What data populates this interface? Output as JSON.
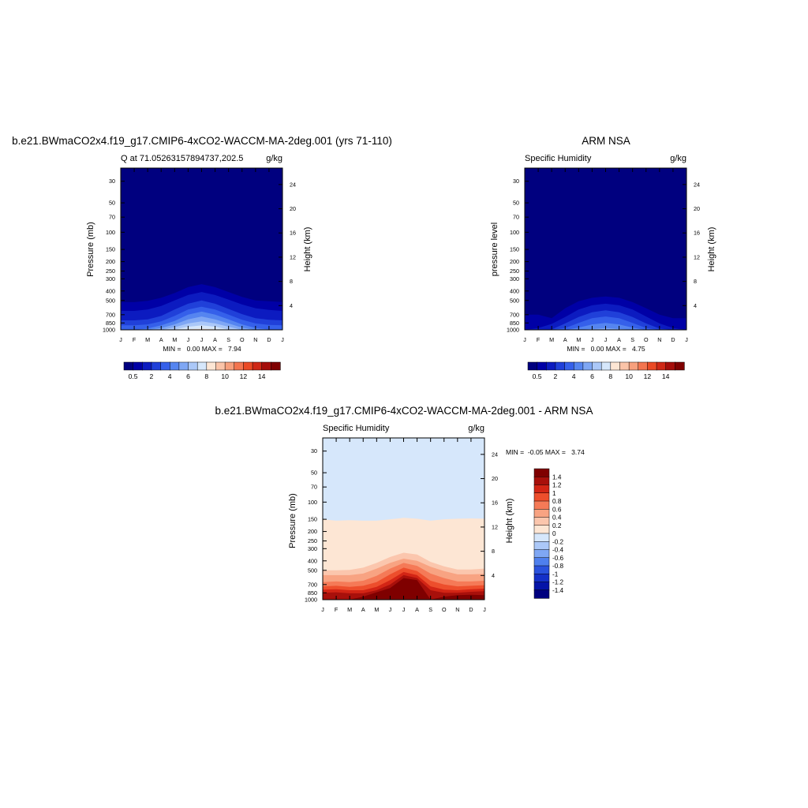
{
  "chart_data": [
    {
      "type": "heatmap",
      "title": "b.e21.BWmaCO2x4.f19_g17.CMIP6-4xCO2-WACCM-MA-2deg.001 (yrs 71-110)",
      "left_label": "Q at 71.05263157894737,202.5",
      "right_label": "g/kg",
      "ylabel": "Pressure (mb)",
      "ylabel_right": "Height (km)",
      "x_ticks": [
        "J",
        "F",
        "M",
        "A",
        "M",
        "J",
        "J",
        "A",
        "S",
        "O",
        "N",
        "D",
        "J"
      ],
      "y_ticks": [
        "30",
        "50",
        "70",
        "100",
        "150",
        "200",
        "250",
        "300",
        "400",
        "500",
        "700",
        "850",
        "1000"
      ],
      "y_ticks_right": [
        "24",
        "20",
        "16",
        "12",
        "8",
        "4"
      ],
      "yscale": "log",
      "ylim": [
        1000,
        22
      ],
      "stats": "MIN =   0.00 MAX =   7.94",
      "colorbar": {
        "orientation": "horizontal",
        "labels": [
          "0.5",
          "2",
          "4",
          "6",
          "8",
          "10",
          "12",
          "14"
        ]
      },
      "contour_tops_mb": {
        "x_months": [
          0,
          1,
          2,
          3,
          4,
          5,
          6,
          7,
          8,
          9,
          10,
          11,
          12
        ],
        "levels": [
          {
            "value": 0.5,
            "tops": [
              520,
              520,
              505,
              470,
              420,
              365,
              340,
              365,
              410,
              460,
              500,
              510,
              520
            ]
          },
          {
            "value": 1,
            "tops": [
              640,
              640,
              620,
              570,
              500,
              440,
              410,
              440,
              490,
              550,
              600,
              625,
              640
            ]
          },
          {
            "value": 2,
            "tops": [
              800,
              800,
              780,
              720,
              620,
              540,
              500,
              540,
              610,
              690,
              760,
              790,
              800
            ]
          },
          {
            "value": 3,
            "tops": [
              900,
              900,
              880,
              820,
              720,
              620,
              580,
              620,
              700,
              790,
              860,
              890,
              900
            ]
          },
          {
            "value": 4,
            "tops": [
              1000,
              1000,
              970,
              900,
              810,
              700,
              650,
              700,
              780,
              880,
              960,
              990,
              1000
            ]
          },
          {
            "value": 5,
            "tops": [
              1000,
              1000,
              1000,
              960,
              880,
              780,
              730,
              780,
              860,
              950,
              1000,
              1000,
              1000
            ]
          },
          {
            "value": 6,
            "tops": [
              1000,
              1000,
              1000,
              1000,
              940,
              860,
              820,
              860,
              930,
              1000,
              1000,
              1000,
              1000
            ]
          },
          {
            "value": 7,
            "tops": [
              1000,
              1000,
              1000,
              1000,
              990,
              930,
              900,
              930,
              990,
              1000,
              1000,
              1000,
              1000
            ]
          },
          {
            "value": 8,
            "tops": [
              1000,
              1000,
              1000,
              1000,
              1000,
              985,
              975,
              985,
              1000,
              1000,
              1000,
              1000,
              1000
            ]
          }
        ]
      }
    },
    {
      "type": "heatmap",
      "title": "ARM NSA",
      "left_label": "Specific Humidity",
      "right_label": "g/kg",
      "ylabel": "pressure level",
      "ylabel_right": "Height (km)",
      "x_ticks": [
        "J",
        "F",
        "M",
        "A",
        "M",
        "J",
        "J",
        "A",
        "S",
        "O",
        "N",
        "D",
        "J"
      ],
      "y_ticks": [
        "30",
        "50",
        "70",
        "100",
        "150",
        "200",
        "250",
        "300",
        "400",
        "500",
        "700",
        "850",
        "1000"
      ],
      "y_ticks_right": [
        "24",
        "20",
        "16",
        "12",
        "8",
        "4"
      ],
      "yscale": "log",
      "ylim": [
        1000,
        22
      ],
      "stats": "MIN =   0.00 MAX =   4.75",
      "colorbar": {
        "orientation": "horizontal",
        "labels": [
          "0.5",
          "2",
          "4",
          "6",
          "8",
          "10",
          "12",
          "14"
        ]
      },
      "contour_tops_mb": {
        "x_months": [
          0,
          1,
          2,
          3,
          4,
          5,
          6,
          7,
          8,
          9,
          10,
          11,
          12
        ],
        "levels": [
          {
            "value": 0.5,
            "tops": [
              700,
              700,
              760,
              600,
              510,
              470,
              455,
              470,
              520,
              600,
              700,
              760,
              760
            ]
          },
          {
            "value": 1,
            "tops": [
              1000,
              960,
              870,
              740,
              620,
              560,
              540,
              560,
              620,
              730,
              860,
              960,
              1000
            ]
          },
          {
            "value": 2,
            "tops": [
              1000,
              1000,
              990,
              860,
              740,
              660,
              630,
              660,
              740,
              860,
              970,
              1000,
              1000
            ]
          },
          {
            "value": 3,
            "tops": [
              1000,
              1000,
              1000,
              960,
              850,
              760,
              730,
              760,
              850,
              960,
              1000,
              1000,
              1000
            ]
          },
          {
            "value": 4,
            "tops": [
              1000,
              1000,
              1000,
              1000,
              950,
              880,
              850,
              880,
              950,
              1000,
              1000,
              1000,
              1000
            ]
          },
          {
            "value": 5,
            "tops": [
              1000,
              1000,
              1000,
              1000,
              1000,
              980,
              960,
              980,
              1000,
              1000,
              1000,
              1000,
              1000
            ]
          }
        ]
      }
    },
    {
      "type": "heatmap",
      "title": "b.e21.BWmaCO2x4.f19_g17.CMIP6-4xCO2-WACCM-MA-2deg.001 - ARM NSA",
      "left_label": "Specific Humidity",
      "right_label": "g/kg",
      "ylabel": "Pressure (mb)",
      "ylabel_right": "Height (km)",
      "x_ticks": [
        "J",
        "F",
        "M",
        "A",
        "M",
        "J",
        "J",
        "A",
        "S",
        "O",
        "N",
        "D",
        "J"
      ],
      "y_ticks": [
        "30",
        "50",
        "70",
        "100",
        "150",
        "200",
        "250",
        "300",
        "400",
        "500",
        "700",
        "850",
        "1000"
      ],
      "y_ticks_right": [
        "24",
        "20",
        "16",
        "12",
        "8",
        "4"
      ],
      "yscale": "log",
      "ylim": [
        1000,
        22
      ],
      "stats": "MIN =  -0.05 MAX =   3.74",
      "colorbar": {
        "orientation": "vertical",
        "labels": [
          "1.4",
          "1.2",
          "1",
          "0.8",
          "0.6",
          "0.4",
          "0.2",
          "0",
          "-0.2",
          "-0.4",
          "-0.6",
          "-0.8",
          "-1",
          "-1.2",
          "-1.4"
        ]
      },
      "contour_tops_mb": {
        "x_months": [
          0,
          1,
          2,
          3,
          4,
          5,
          6,
          7,
          8,
          9,
          10,
          11,
          12
        ],
        "levels": [
          {
            "value": 0,
            "tops": [
              150,
              155,
              153,
              155,
              155,
              150,
              145,
              148,
              155,
              150,
              148,
              147,
              148
            ]
          },
          {
            "value": 0.2,
            "tops": [
              500,
              500,
              495,
              470,
              420,
              365,
              330,
              345,
              410,
              455,
              490,
              490,
              480
            ]
          },
          {
            "value": 0.4,
            "tops": [
              560,
              560,
              560,
              540,
              480,
              420,
              380,
              400,
              460,
              510,
              550,
              550,
              545
            ]
          },
          {
            "value": 0.6,
            "tops": [
              660,
              650,
              660,
              640,
              570,
              480,
              420,
              450,
              540,
              600,
              650,
              650,
              640
            ]
          },
          {
            "value": 0.8,
            "tops": [
              730,
              720,
              740,
              720,
              660,
              550,
              470,
              510,
              640,
              700,
              730,
              720,
              710
            ]
          },
          {
            "value": 1,
            "tops": [
              790,
              780,
              800,
              800,
              740,
              630,
              520,
              560,
              730,
              790,
              800,
              780,
              770
            ]
          },
          {
            "value": 1.2,
            "tops": [
              850,
              840,
              860,
              860,
              800,
              700,
              560,
              600,
              800,
              850,
              850,
              830,
              820
            ]
          },
          {
            "value": 1.4,
            "tops": [
              1000,
              1000,
              1000,
              930,
              840,
              760,
              600,
              630,
              1000,
              930,
              900,
              890,
              900
            ]
          }
        ]
      }
    }
  ]
}
